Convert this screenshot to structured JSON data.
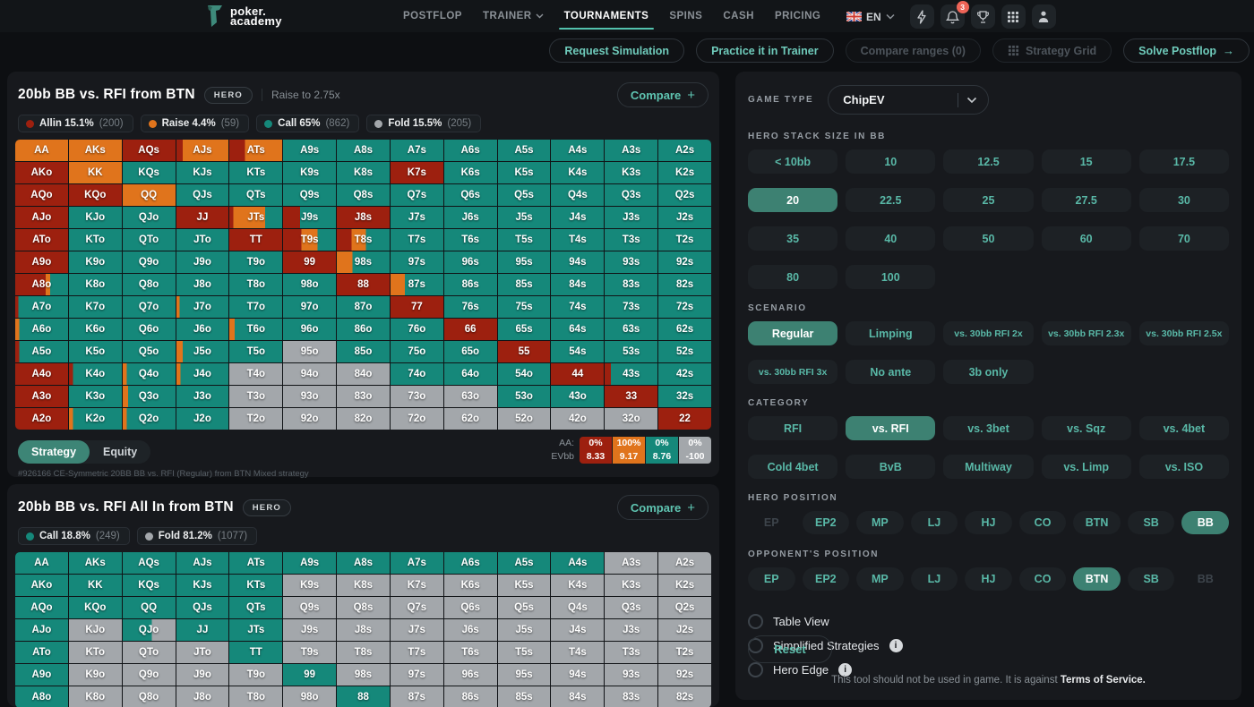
{
  "colors": {
    "allin": "#9d200f",
    "raise": "#e0741c",
    "call": "#15887a",
    "fold": "#a3a7ab",
    "accent": "#53c2ae"
  },
  "icons": {
    "plus": "+",
    "arrow_right": "→",
    "info": "i",
    "caret_down": "⌄"
  },
  "navbar": {
    "brand": {
      "line1": "poker.",
      "line2": "academy"
    },
    "items": [
      {
        "label": "POSTFLOP",
        "active": false,
        "caret": false
      },
      {
        "label": "TRAINER",
        "active": false,
        "caret": true
      },
      {
        "label": "TOURNAMENTS",
        "active": true,
        "caret": false
      },
      {
        "label": "SPINS",
        "active": false,
        "caret": false
      },
      {
        "label": "CASH",
        "active": false,
        "caret": false
      },
      {
        "label": "PRICING",
        "active": false,
        "caret": false
      }
    ],
    "lang": "EN",
    "bell_badge": "3"
  },
  "actions": [
    {
      "label": "Request Simulation",
      "state": "enabled",
      "icon": "",
      "arrow": false
    },
    {
      "label": "Practice it in Trainer",
      "state": "enabled",
      "icon": "",
      "arrow": false
    },
    {
      "label": "Compare ranges (0)",
      "state": "disabled",
      "icon": "",
      "arrow": false
    },
    {
      "label": "Strategy Grid",
      "state": "disabled",
      "icon": "grid",
      "arrow": false
    },
    {
      "label": "Solve Postflop",
      "state": "enabled",
      "icon": "",
      "arrow": true
    }
  ],
  "panel1": {
    "title": "20bb BB vs. RFI from BTN",
    "badge": "HERO",
    "subtitle": "Raise to 2.75x",
    "compare_label": "Compare",
    "legend": [
      {
        "label": "Allin 15.1%",
        "count": "(200)",
        "color": "allin"
      },
      {
        "label": "Raise 4.4%",
        "count": "(59)",
        "color": "raise"
      },
      {
        "label": "Call 65%",
        "count": "(862)",
        "color": "call"
      },
      {
        "label": "Fold 15.5%",
        "count": "(205)",
        "color": "fold"
      }
    ],
    "tabs": [
      {
        "label": "Strategy",
        "active": true
      },
      {
        "label": "Equity",
        "active": false
      }
    ],
    "ev_legend": {
      "hand_label": "AA:",
      "ev_label": "EVbb",
      "entries": [
        {
          "pct": "0%",
          "ev": "8.33",
          "color": "allin"
        },
        {
          "pct": "100%",
          "ev": "9.17",
          "color": "raise"
        },
        {
          "pct": "0%",
          "ev": "8.76",
          "color": "call"
        },
        {
          "pct": "0%",
          "ev": "-100",
          "color": "fold"
        }
      ]
    },
    "footnote": "#926166 CE-Symmetric 20BB BB vs. RFI (Regular) from BTN Mixed strategy",
    "grid": [
      [
        "AA|r",
        "AKs|r",
        "AQs|a",
        "AJs|a12r88",
        "ATs|a30r70",
        "A9s|c",
        "A8s|c",
        "A7s|c",
        "A6s|c",
        "A5s|c",
        "A4s|c",
        "A3s|c",
        "A2s|c"
      ],
      [
        "AKo|a",
        "KK|r",
        "KQs|c",
        "KJs|c",
        "KTs|c",
        "K9s|c",
        "K8s|c",
        "K7s|a",
        "K6s|c",
        "K5s|c",
        "K4s|c",
        "K3s|c",
        "K2s|c"
      ],
      [
        "AQo|a",
        "KQo|a",
        "QQ|r",
        "QJs|c",
        "QTs|c",
        "Q9s|c",
        "Q8s|c",
        "Q7s|c",
        "Q6s|c",
        "Q5s|c",
        "Q4s|c",
        "Q3s|c",
        "Q2s|c"
      ],
      [
        "AJo|a",
        "KJo|c",
        "QJo|c",
        "JJ|a",
        "JTs|a8r60c32",
        "J9s|a32c68",
        "J8s|a",
        "J7s|c",
        "J6s|c",
        "J5s|c",
        "J4s|c",
        "J3s|c",
        "J2s|c"
      ],
      [
        "ATo|a",
        "KTo|c",
        "QTo|c",
        "JTo|c",
        "TT|a",
        "T9s|a35r30c35",
        "T8s|a28r27c45",
        "T7s|c",
        "T6s|c",
        "T5s|c",
        "T4s|c",
        "T3s|c",
        "T2s|c"
      ],
      [
        "A9o|a",
        "K9o|c",
        "Q9o|c",
        "J9o|c",
        "T9o|c",
        "99|a",
        "98s|r30c70",
        "97s|c",
        "96s|c",
        "95s|c",
        "94s|c",
        "93s|c",
        "92s|c"
      ],
      [
        "A8o|a58r8c34",
        "K8o|c",
        "Q8o|c",
        "J8o|c",
        "T8o|c",
        "98o|c",
        "88|a",
        "87s|r27c73",
        "86s|c",
        "85s|c",
        "84s|c",
        "83s|c",
        "82s|c"
      ],
      [
        "A7o|a6c94",
        "K7o|c",
        "Q7o|c",
        "J7o|r6c94",
        "T7o|c",
        "97o|c",
        "87o|c",
        "77|a",
        "76s|c",
        "75s|c",
        "74s|c",
        "73s|c",
        "72s|c"
      ],
      [
        "A6o|r8c92",
        "K6o|c",
        "Q6o|c",
        "J6o|c",
        "T6o|r10c90",
        "96o|c",
        "86o|c",
        "76o|c",
        "66|a",
        "65s|c",
        "64s|c",
        "63s|c",
        "62s|c"
      ],
      [
        "A5o|a8c92",
        "K5o|c",
        "Q5o|c",
        "J5o|r12c88",
        "T5o|c",
        "95o|f",
        "85o|c",
        "75o|c",
        "65o|c",
        "55|a",
        "54s|c",
        "53s|c",
        "52s|c"
      ],
      [
        "A4o|a",
        "K4o|a8c92",
        "Q4o|r8c92",
        "J4o|r8c92",
        "T4o|f",
        "94o|f",
        "84o|f",
        "74o|c",
        "64o|c",
        "54o|c",
        "44|a",
        "43s|a12c88",
        "42s|c"
      ],
      [
        "A3o|a",
        "K3o|c",
        "Q3o|r10c90",
        "J3o|c",
        "T3o|f",
        "93o|f",
        "83o|f",
        "73o|f",
        "63o|f",
        "53o|c",
        "43o|c",
        "33|a",
        "32s|c"
      ],
      [
        "A2o|a",
        "K2o|r8c92",
        "Q2o|r8c92",
        "J2o|c",
        "T2o|f",
        "92o|f",
        "82o|f",
        "72o|f",
        "62o|f",
        "52o|f",
        "42o|f",
        "32o|f",
        "22|a"
      ]
    ]
  },
  "panel2": {
    "title": "20bb BB vs. RFI All In from BTN",
    "badge": "HERO",
    "compare_label": "Compare",
    "legend": [
      {
        "label": "Call 18.8%",
        "count": "(249)",
        "color": "call"
      },
      {
        "label": "Fold 81.2%",
        "count": "(1077)",
        "color": "fold"
      }
    ],
    "grid": [
      [
        "AA|c",
        "AKs|c",
        "AQs|c",
        "AJs|c",
        "ATs|c",
        "A9s|c",
        "A8s|c",
        "A7s|c",
        "A6s|c",
        "A5s|c",
        "A4s|c",
        "A3s|f",
        "A2s|f"
      ],
      [
        "AKo|c",
        "KK|c",
        "KQs|c",
        "KJs|c",
        "KTs|c",
        "K9s|f",
        "K8s|f",
        "K7s|f",
        "K6s|f",
        "K5s|f",
        "K4s|f",
        "K3s|f",
        "K2s|f"
      ],
      [
        "AQo|c",
        "KQo|c",
        "QQ|c",
        "QJs|c",
        "QTs|c",
        "Q9s|f",
        "Q8s|f",
        "Q7s|f",
        "Q6s|f",
        "Q5s|f",
        "Q4s|f",
        "Q3s|f",
        "Q2s|f"
      ],
      [
        "AJo|c",
        "KJo|f",
        "QJo|c55f45",
        "JJ|c",
        "JTs|c",
        "J9s|f",
        "J8s|f",
        "J7s|f",
        "J6s|f",
        "J5s|f",
        "J4s|f",
        "J3s|f",
        "J2s|f"
      ],
      [
        "ATo|c",
        "KTo|f",
        "QTo|f",
        "JTo|f",
        "TT|c",
        "T9s|f",
        "T8s|f",
        "T7s|f",
        "T6s|f",
        "T5s|f",
        "T4s|f",
        "T3s|f",
        "T2s|f"
      ],
      [
        "A9o|c",
        "K9o|f",
        "Q9o|f",
        "J9o|f",
        "T9o|f",
        "99|c",
        "98s|f",
        "97s|f",
        "96s|f",
        "95s|f",
        "94s|f",
        "93s|f",
        "92s|f"
      ],
      [
        "A8o|c",
        "K8o|f",
        "Q8o|f",
        "J8o|f",
        "T8o|f",
        "98o|f",
        "88|c",
        "87s|f",
        "86s|f",
        "85s|f",
        "84s|f",
        "83s|f",
        "82s|f"
      ]
    ]
  },
  "sidebar": {
    "game_type": {
      "label": "GAME TYPE",
      "value": "ChipEV"
    },
    "stack": {
      "label": "HERO STACK SIZE IN BB",
      "options": [
        "< 10bb",
        "10",
        "12.5",
        "15",
        "17.5",
        "20",
        "22.5",
        "25",
        "27.5",
        "30",
        "35",
        "40",
        "50",
        "60",
        "70",
        "80",
        "100"
      ],
      "selected": "20",
      "disabled": []
    },
    "scenario": {
      "label": "SCENARIO",
      "options": [
        "Regular",
        "Limping",
        "vs. 30bb RFI 2x",
        "vs. 30bb RFI 2.3x",
        "vs. 30bb RFI 2.5x",
        "vs. 30bb RFI 3x",
        "No ante",
        "3b only"
      ],
      "selected": "Regular",
      "disabled": []
    },
    "category": {
      "label": "CATEGORY",
      "options": [
        "RFI",
        "vs. RFI",
        "vs. 3bet",
        "vs. Sqz",
        "vs. 4bet",
        "Cold 4bet",
        "BvB",
        "Multiway",
        "vs. Limp",
        "vs. ISO"
      ],
      "selected": "vs. RFI",
      "disabled": []
    },
    "hero_position": {
      "label": "HERO POSITION",
      "options": [
        "EP",
        "EP2",
        "MP",
        "LJ",
        "HJ",
        "CO",
        "BTN",
        "SB",
        "BB"
      ],
      "selected": "BB",
      "disabled": [
        "EP"
      ]
    },
    "opponent_position": {
      "label": "OPPONENT'S POSITION",
      "options": [
        "EP",
        "EP2",
        "MP",
        "LJ",
        "HJ",
        "CO",
        "BTN",
        "SB",
        "BB"
      ],
      "selected": "BTN",
      "disabled": [
        "BB"
      ]
    },
    "toggles": [
      {
        "label": "Table View",
        "info": false,
        "checked": false
      },
      {
        "label": "Simplified Strategies",
        "info": true,
        "checked": false
      },
      {
        "label": "Hero Edge",
        "info": true,
        "checked": false
      }
    ],
    "reset_label": "Reset",
    "disclaimer": {
      "text": "This tool should not be used in game. It is against ",
      "bold": "Terms of Service."
    }
  }
}
